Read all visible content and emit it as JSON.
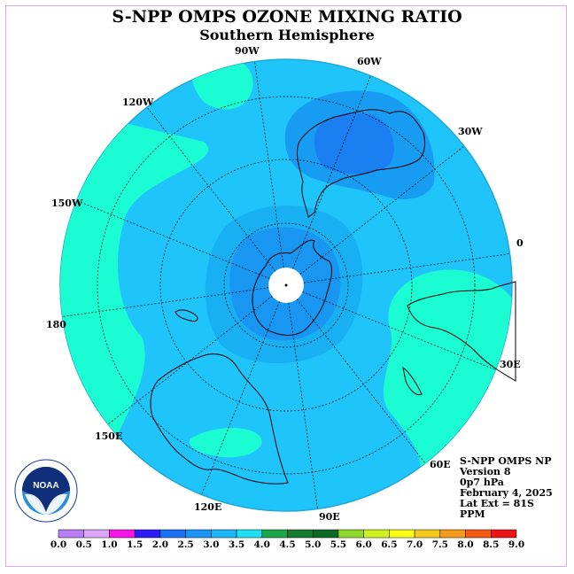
{
  "header": {
    "title": "S-NPP OMPS OZONE MIXING RATIO",
    "subtitle": "Southern Hemisphere"
  },
  "map": {
    "projection": "polar-stereographic-south",
    "longitude_labels": [
      "90W",
      "60W",
      "30W",
      "0",
      "30E",
      "60E",
      "90E",
      "120E",
      "150E",
      "180",
      "150W",
      "120W"
    ],
    "colors": {
      "ocean_ring": "#21bfe0",
      "band_2_5": "#1b8ff0",
      "band_3_0": "#1fb2f7",
      "band_3_5": "#19c8fb",
      "band_4_0": "#1dfcd8",
      "polar_hole": "#ffffff"
    }
  },
  "info": {
    "lines": [
      "S-NPP OMPS NP",
      "Version 8",
      "0p7 hPa",
      "February 4, 2025",
      "Lat Ext = 81S",
      "PPM"
    ]
  },
  "colorbar": {
    "ticks": [
      "0.0",
      "0.5",
      "1.0",
      "1.5",
      "2.0",
      "2.5",
      "3.0",
      "3.5",
      "4.0",
      "4.5",
      "5.0",
      "5.5",
      "6.0",
      "6.5",
      "7.0",
      "7.5",
      "8.0",
      "8.5",
      "9.0"
    ],
    "colors": [
      "#b77ff3",
      "#dca7f8",
      "#f515e5",
      "#2f1bf5",
      "#1a70f5",
      "#1b95f5",
      "#1cb5f7",
      "#1fdff5",
      "#1aa64a",
      "#137a2f",
      "#0d6a25",
      "#8fd82a",
      "#cdf01e",
      "#fbfd14",
      "#f4c81d",
      "#f59a19",
      "#f55a14",
      "#ec1416",
      "#8a5a3a"
    ]
  },
  "logo": {
    "text": "NOAA",
    "ring_text": "NATIONAL OCEANIC AND ATMOSPHERIC ADMINISTRATION · U.S. DEPARTMENT OF COMMERCE"
  }
}
